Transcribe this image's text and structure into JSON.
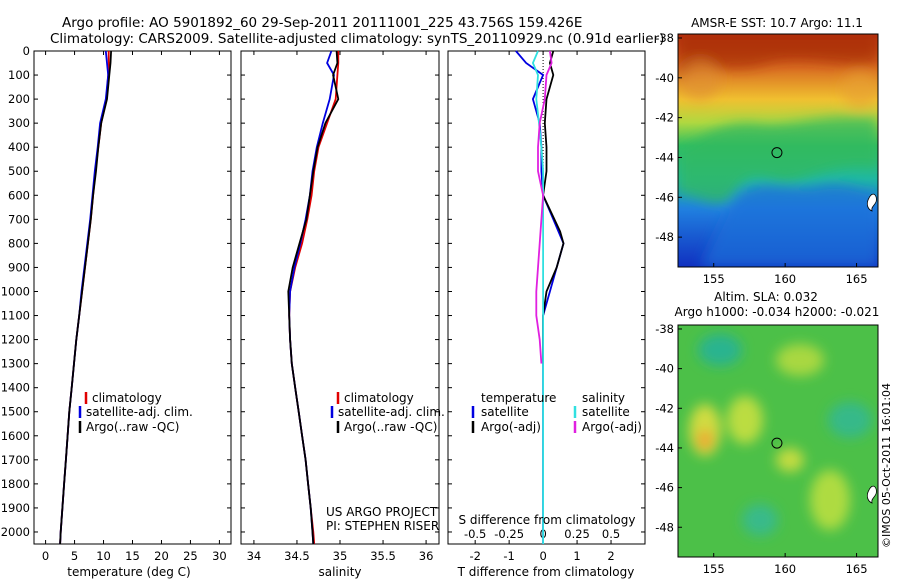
{
  "header": {
    "line1": "Argo profile: AO 5901892_60 29-Sep-2011 20111001_225 43.756S 159.426E",
    "line2": "Climatology: CARS2009. Satellite-adjusted climatology: synTS_20110929.nc (0.91d earlier)"
  },
  "credit": {
    "project": "US ARGO PROJECT",
    "pi": "PI: STEPHEN RISER",
    "stamp": "©IMOS 05-Oct-2011 16:01:04"
  },
  "colors": {
    "climatology": "#e00000",
    "satellite": "#0000e0",
    "argo": "#000000",
    "sal_satellite": "#30e0e0",
    "sal_argo": "#e020e0"
  },
  "chart_data": [
    {
      "type": "line",
      "xlabel": "temperature (deg C)",
      "ylabel": "",
      "xlim": [
        -2,
        32
      ],
      "ylim": [
        2050,
        0
      ],
      "xticks": [
        0,
        5,
        10,
        15,
        20,
        25,
        30
      ],
      "yticks": [
        0,
        100,
        200,
        300,
        400,
        500,
        600,
        700,
        800,
        900,
        1000,
        1100,
        1200,
        1300,
        1400,
        1500,
        1600,
        1700,
        1800,
        1900,
        2000
      ],
      "legend": {
        "placement": "lower-center",
        "entries": [
          "climatology",
          "satellite-adj. clim.",
          "Argo(..raw -QC)"
        ]
      },
      "series": [
        {
          "name": "climatology",
          "color": "#e00000",
          "points": [
            [
              10.9,
              0
            ],
            [
              10.9,
              50
            ],
            [
              10.8,
              100
            ],
            [
              10.5,
              200
            ],
            [
              9.6,
              300
            ],
            [
              9.1,
              400
            ],
            [
              8.6,
              500
            ],
            [
              8.2,
              600
            ],
            [
              7.8,
              700
            ],
            [
              7.3,
              800
            ],
            [
              6.8,
              900
            ],
            [
              6.3,
              1000
            ],
            [
              5.8,
              1100
            ],
            [
              5.3,
              1200
            ],
            [
              4.9,
              1300
            ],
            [
              4.5,
              1400
            ],
            [
              4.1,
              1500
            ],
            [
              3.8,
              1600
            ],
            [
              3.5,
              1700
            ],
            [
              3.2,
              1800
            ],
            [
              2.9,
              1900
            ],
            [
              2.6,
              2000
            ],
            [
              2.5,
              2050
            ]
          ]
        },
        {
          "name": "satellite-adj. clim.",
          "color": "#0000e0",
          "points": [
            [
              10.4,
              0
            ],
            [
              10.6,
              50
            ],
            [
              10.8,
              100
            ],
            [
              10.4,
              200
            ],
            [
              9.4,
              300
            ],
            [
              9.0,
              400
            ],
            [
              8.5,
              500
            ],
            [
              8.1,
              600
            ],
            [
              7.7,
              700
            ],
            [
              7.2,
              800
            ],
            [
              6.7,
              900
            ],
            [
              6.2,
              1000
            ],
            [
              5.8,
              1100
            ],
            [
              5.3,
              1200
            ],
            [
              4.9,
              1300
            ],
            [
              4.5,
              1400
            ],
            [
              4.1,
              1500
            ],
            [
              3.8,
              1600
            ],
            [
              3.5,
              1700
            ],
            [
              3.2,
              1800
            ],
            [
              2.9,
              1900
            ],
            [
              2.6,
              2000
            ],
            [
              2.5,
              2050
            ]
          ]
        },
        {
          "name": "Argo(..raw -QC)",
          "color": "#000000",
          "points": [
            [
              11.3,
              0
            ],
            [
              11.2,
              50
            ],
            [
              11.0,
              100
            ],
            [
              10.6,
              200
            ],
            [
              9.6,
              300
            ],
            [
              9.1,
              400
            ],
            [
              8.7,
              500
            ],
            [
              8.2,
              600
            ],
            [
              7.8,
              700
            ],
            [
              7.3,
              800
            ],
            [
              6.8,
              900
            ],
            [
              6.3,
              1000
            ],
            [
              5.8,
              1100
            ],
            [
              5.3,
              1200
            ],
            [
              4.9,
              1300
            ],
            [
              4.5,
              1400
            ],
            [
              4.1,
              1500
            ],
            [
              3.8,
              1600
            ],
            [
              3.5,
              1700
            ],
            [
              3.2,
              1800
            ],
            [
              2.9,
              1900
            ],
            [
              2.6,
              2000
            ],
            [
              2.5,
              2050
            ]
          ]
        }
      ]
    },
    {
      "type": "line",
      "xlabel": "salinity",
      "ylabel": "",
      "xlim": [
        33.85,
        36.15
      ],
      "ylim": [
        2050,
        0
      ],
      "xticks": [
        34,
        34.5,
        35,
        35.5,
        36
      ],
      "xticklabels": [
        "34",
        "34.5",
        "35",
        "35.5",
        "36"
      ],
      "legend": {
        "placement": "lower-right",
        "entries": [
          "climatology",
          "satellite-adj. clim.",
          "Argo(..raw -QC)"
        ]
      },
      "series": [
        {
          "name": "climatology",
          "color": "#e00000",
          "points": [
            [
              34.98,
              0
            ],
            [
              34.98,
              50
            ],
            [
              34.97,
              100
            ],
            [
              34.95,
              200
            ],
            [
              34.85,
              300
            ],
            [
              34.75,
              400
            ],
            [
              34.7,
              500
            ],
            [
              34.67,
              600
            ],
            [
              34.62,
              700
            ],
            [
              34.56,
              800
            ],
            [
              34.48,
              900
            ],
            [
              34.42,
              1000
            ],
            [
              34.41,
              1100
            ],
            [
              34.42,
              1200
            ],
            [
              34.44,
              1300
            ],
            [
              34.48,
              1400
            ],
            [
              34.52,
              1500
            ],
            [
              34.56,
              1600
            ],
            [
              34.6,
              1700
            ],
            [
              34.63,
              1800
            ],
            [
              34.66,
              1900
            ],
            [
              34.69,
              2000
            ],
            [
              34.7,
              2050
            ]
          ]
        },
        {
          "name": "satellite-adj. clim.",
          "color": "#0000e0",
          "points": [
            [
              34.9,
              0
            ],
            [
              34.85,
              50
            ],
            [
              34.93,
              100
            ],
            [
              34.88,
              200
            ],
            [
              34.8,
              300
            ],
            [
              34.73,
              400
            ],
            [
              34.68,
              500
            ],
            [
              34.65,
              600
            ],
            [
              34.6,
              700
            ],
            [
              34.54,
              800
            ],
            [
              34.47,
              900
            ],
            [
              34.42,
              1000
            ],
            [
              34.41,
              1100
            ],
            [
              34.42,
              1200
            ],
            [
              34.44,
              1300
            ],
            [
              34.48,
              1400
            ],
            [
              34.52,
              1500
            ],
            [
              34.56,
              1600
            ],
            [
              34.6,
              1700
            ],
            [
              34.63,
              1800
            ],
            [
              34.66,
              1900
            ],
            [
              34.68,
              2000
            ],
            [
              34.69,
              2050
            ]
          ]
        },
        {
          "name": "Argo(..raw -QC)",
          "color": "#000000",
          "points": [
            [
              34.96,
              0
            ],
            [
              34.97,
              50
            ],
            [
              34.92,
              100
            ],
            [
              34.98,
              200
            ],
            [
              34.83,
              300
            ],
            [
              34.74,
              400
            ],
            [
              34.69,
              500
            ],
            [
              34.65,
              600
            ],
            [
              34.61,
              700
            ],
            [
              34.53,
              800
            ],
            [
              34.45,
              900
            ],
            [
              34.4,
              1000
            ],
            [
              34.41,
              1100
            ],
            [
              34.42,
              1200
            ],
            [
              34.44,
              1300
            ],
            [
              34.48,
              1400
            ],
            [
              34.52,
              1500
            ],
            [
              34.56,
              1600
            ],
            [
              34.6,
              1700
            ],
            [
              34.63,
              1800
            ],
            [
              34.66,
              1900
            ],
            [
              34.68,
              2000
            ],
            [
              34.69,
              2050
            ]
          ]
        }
      ]
    },
    {
      "type": "line",
      "xlabel": "T difference from climatology",
      "ylabel": "",
      "xlim": [
        -2.8,
        3.0
      ],
      "ylim": [
        2050,
        0
      ],
      "xticks": [
        -2,
        -1,
        0,
        1,
        2
      ],
      "xticklabels": [
        "-2",
        "-1",
        "0",
        "1",
        "2"
      ],
      "secondary_xlabel": "S difference from climatology",
      "secondary_xticklabels": [
        "-0.5",
        "-0.25",
        "0",
        "0.25",
        "0.5"
      ],
      "legend": {
        "placement": "lower-center",
        "groups": [
          {
            "title": "temperature",
            "entries": [
              "satellite",
              "Argo(-adj)"
            ]
          },
          {
            "title": "salinity",
            "entries": [
              "satellite",
              "Argo(-adj)"
            ]
          }
        ]
      },
      "series": [
        {
          "name": "temperature satellite",
          "color": "#0000e0",
          "points": [
            [
              -0.8,
              0
            ],
            [
              -0.5,
              50
            ],
            [
              0.0,
              100
            ],
            [
              -0.3,
              200
            ],
            [
              -0.1,
              300
            ],
            [
              -0.05,
              400
            ],
            [
              -0.05,
              500
            ],
            [
              0.0,
              600
            ],
            [
              0.3,
              700
            ],
            [
              0.6,
              800
            ],
            [
              0.4,
              900
            ],
            [
              0.2,
              1000
            ],
            [
              0.0,
              1100
            ],
            [
              0.0,
              1200
            ],
            [
              0.0,
              1500
            ],
            [
              0.0,
              2050
            ]
          ]
        },
        {
          "name": "temperature Argo(-adj)",
          "color": "#000000",
          "points": [
            [
              0.3,
              0
            ],
            [
              0.2,
              50
            ],
            [
              0.3,
              100
            ],
            [
              0.1,
              200
            ],
            [
              0.05,
              300
            ],
            [
              0.1,
              400
            ],
            [
              0.1,
              500
            ],
            [
              0.0,
              600
            ],
            [
              0.5,
              750
            ],
            [
              0.6,
              800
            ],
            [
              0.4,
              900
            ],
            [
              0.1,
              1000
            ],
            [
              0.0,
              1100
            ],
            [
              0.0,
              1300
            ]
          ]
        },
        {
          "name": "salinity satellite",
          "color": "#30e0e0",
          "points": [
            [
              -0.15,
              0
            ],
            [
              -0.3,
              50
            ],
            [
              -0.15,
              100
            ],
            [
              -0.2,
              200
            ],
            [
              -0.12,
              300
            ],
            [
              -0.05,
              400
            ],
            [
              0.0,
              500
            ],
            [
              0.0,
              800
            ],
            [
              0.0,
              2050
            ]
          ]
        },
        {
          "name": "salinity Argo(-adj)",
          "color": "#e020e0",
          "points": [
            [
              0.2,
              0
            ],
            [
              0.25,
              50
            ],
            [
              0.1,
              100
            ],
            [
              0.05,
              200
            ],
            [
              -0.1,
              300
            ],
            [
              -0.15,
              400
            ],
            [
              -0.15,
              500
            ],
            [
              0.0,
              600
            ],
            [
              -0.1,
              800
            ],
            [
              -0.15,
              900
            ],
            [
              -0.2,
              1000
            ],
            [
              -0.2,
              1100
            ],
            [
              -0.1,
              1200
            ],
            [
              -0.05,
              1300
            ]
          ]
        }
      ]
    },
    {
      "type": "heatmap",
      "title": "AMSR-E SST: 10.7 Argo: 11.1",
      "xlim": [
        152.5,
        166.5
      ],
      "ylim": [
        -49.5,
        -37.8
      ],
      "xticks": [
        155,
        160,
        165
      ],
      "yticks": [
        -38,
        -40,
        -42,
        -44,
        -46,
        -48
      ],
      "marker": {
        "lon": 159.426,
        "lat": -43.756
      }
    },
    {
      "type": "heatmap",
      "title": "Altim. SLA: 0.032",
      "subtitle": "Argo h1000: -0.034 h2000: -0.021",
      "xlim": [
        152.5,
        166.5
      ],
      "ylim": [
        -49.5,
        -37.8
      ],
      "xticks": [
        155,
        160,
        165
      ],
      "yticks": [
        -38,
        -40,
        -42,
        -44,
        -46,
        -48
      ],
      "marker": {
        "lon": 159.426,
        "lat": -43.756
      }
    }
  ]
}
